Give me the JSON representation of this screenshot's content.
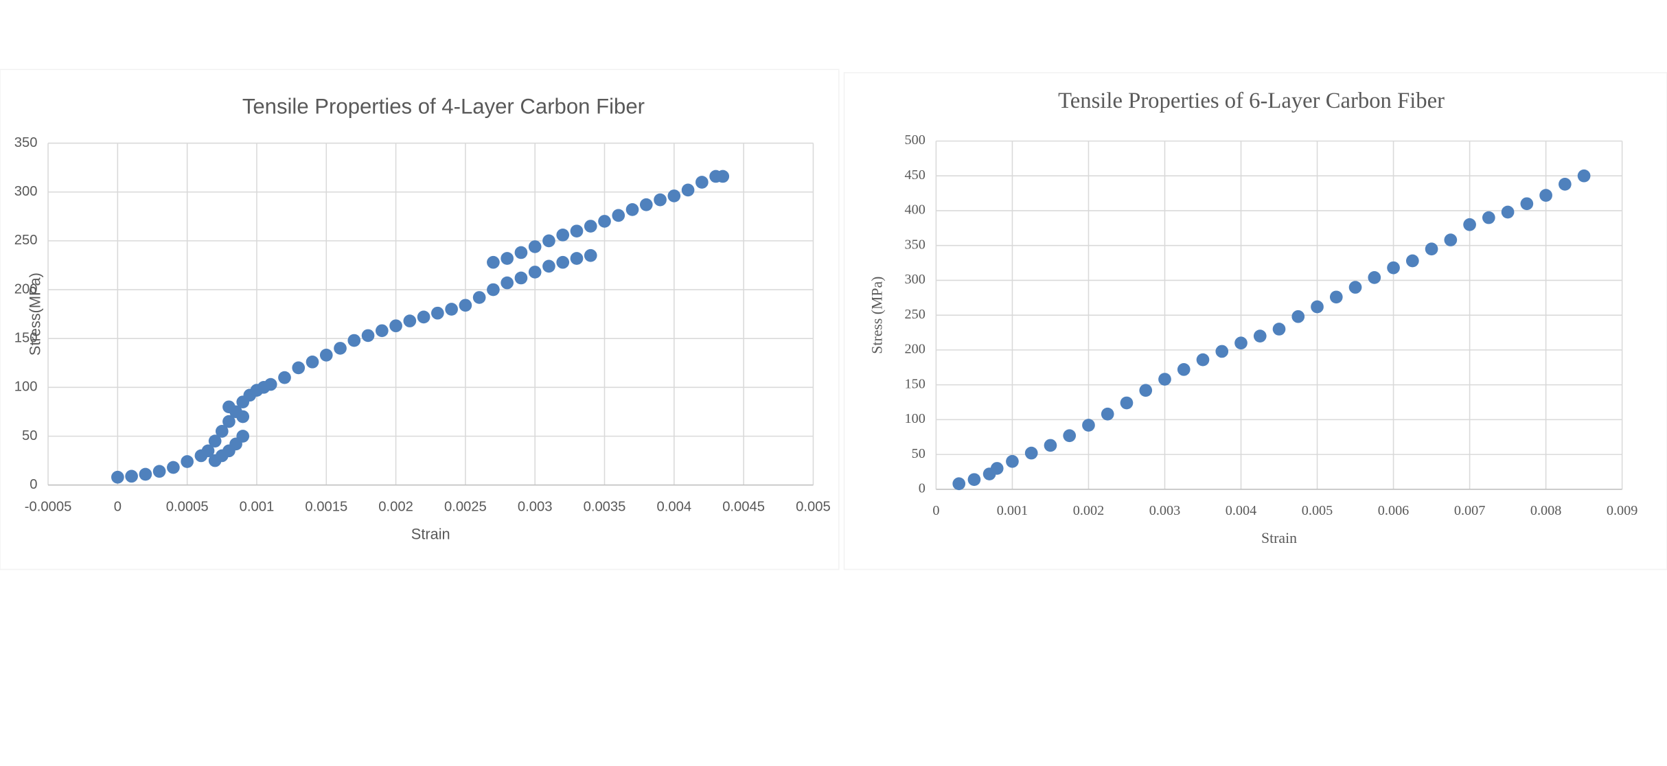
{
  "chart_data": [
    {
      "type": "scatter",
      "title": "Tensile Properties of 4-Layer Carbon Fiber",
      "xlabel": "Strain",
      "ylabel": "Stress(MPa)",
      "color": "#4f81bd",
      "grid": true,
      "xlim": [
        -0.0005,
        0.005
      ],
      "xticks": [
        -0.0005,
        0,
        0.0005,
        0.001,
        0.0015,
        0.002,
        0.0025,
        0.003,
        0.0035,
        0.004,
        0.0045,
        0.005
      ],
      "ylim": [
        0,
        350
      ],
      "yticks": [
        0,
        50,
        100,
        150,
        200,
        250,
        300,
        350
      ],
      "x": [
        0,
        0.0001,
        0.0002,
        0.0003,
        0.0004,
        0.0005,
        0.0006,
        0.00065,
        0.0007,
        0.00075,
        0.0008,
        0.00085,
        0.0009,
        0.00095,
        0.001,
        0.00105,
        0.0011,
        0.0012,
        0.0013,
        0.0014,
        0.0015,
        0.0016,
        0.0017,
        0.0018,
        0.0019,
        0.002,
        0.0021,
        0.0022,
        0.0023,
        0.0024,
        0.0025,
        0.0026,
        0.0027,
        0.0028,
        0.0029,
        0.003,
        0.0031,
        0.0032,
        0.0033,
        0.0034,
        0.0027,
        0.0028,
        0.0029,
        0.003,
        0.0031,
        0.0032,
        0.0033,
        0.0034,
        0.0035,
        0.0036,
        0.0037,
        0.0038,
        0.0039,
        0.004,
        0.0041,
        0.0042,
        0.0043,
        0.00435,
        0.0007,
        0.00075,
        0.0008,
        0.00085,
        0.0009,
        0.0008,
        0.0009
      ],
      "values": [
        8,
        9,
        11,
        14,
        18,
        24,
        30,
        35,
        45,
        55,
        65,
        75,
        85,
        92,
        97,
        100,
        103,
        110,
        120,
        126,
        133,
        140,
        148,
        153,
        158,
        163,
        168,
        172,
        176,
        180,
        184,
        192,
        200,
        207,
        212,
        218,
        224,
        228,
        232,
        235,
        228,
        232,
        238,
        244,
        250,
        256,
        260,
        265,
        270,
        276,
        282,
        287,
        292,
        296,
        302,
        310,
        316,
        316,
        25,
        30,
        35,
        42,
        50,
        80,
        70
      ]
    },
    {
      "type": "scatter",
      "title": "Tensile Properties of 6-Layer Carbon Fiber",
      "xlabel": "Strain",
      "ylabel": "Stress (MPa)",
      "color": "#4f81bd",
      "grid": true,
      "xlim": [
        0,
        0.009
      ],
      "xticks": [
        0,
        0.001,
        0.002,
        0.003,
        0.004,
        0.005,
        0.006,
        0.007,
        0.008,
        0.009
      ],
      "ylim": [
        0,
        500
      ],
      "yticks": [
        0,
        50,
        100,
        150,
        200,
        250,
        300,
        350,
        400,
        450,
        500
      ],
      "x": [
        0.0003,
        0.0005,
        0.0007,
        0.0008,
        0.001,
        0.00125,
        0.0015,
        0.00175,
        0.002,
        0.00225,
        0.0025,
        0.00275,
        0.003,
        0.00325,
        0.0035,
        0.00375,
        0.004,
        0.00425,
        0.0045,
        0.00475,
        0.005,
        0.00525,
        0.0055,
        0.00575,
        0.006,
        0.00625,
        0.0065,
        0.00675,
        0.007,
        0.00725,
        0.0075,
        0.00775,
        0.008,
        0.00825,
        0.0085
      ],
      "values": [
        8,
        14,
        22,
        30,
        40,
        52,
        63,
        77,
        92,
        108,
        124,
        142,
        158,
        172,
        186,
        198,
        210,
        220,
        230,
        248,
        262,
        276,
        290,
        304,
        318,
        328,
        345,
        358,
        380,
        390,
        398,
        410,
        422,
        438,
        450
      ]
    }
  ]
}
